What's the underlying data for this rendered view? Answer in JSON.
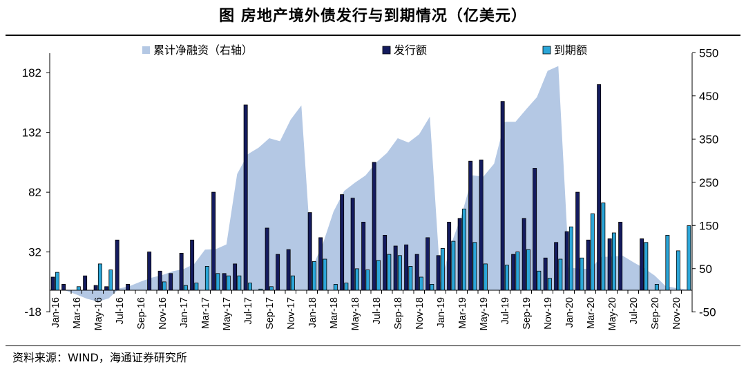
{
  "title": "图  房地产境外债发行与到期情况（亿美元）",
  "source": "资料来源：WIND，海通证券研究所",
  "colors": {
    "area": "#B4C8E4",
    "issue": "#141B5E",
    "maturity": "#2BA6D8",
    "bar_outline": "#000000"
  },
  "chart_data": {
    "type": "bar+area",
    "legend_position": "top",
    "grid": false,
    "left_axis": {
      "ylim": [
        -18,
        200
      ],
      "ticks": [
        -18,
        32,
        82,
        132,
        182
      ]
    },
    "right_axis": {
      "ylim": [
        -50,
        555
      ],
      "ticks": [
        -50,
        50,
        150,
        250,
        350,
        450,
        550
      ]
    },
    "x_tick_labels": [
      "Jan-16",
      "Mar-16",
      "May-16",
      "Jul-16",
      "Sep-16",
      "Nov-16",
      "Jan-17",
      "Mar-17",
      "May-17",
      "Jul-17",
      "Sep-17",
      "Nov-17",
      "Jan-18",
      "Mar-18",
      "May-18",
      "Jul-18",
      "Sep-18",
      "Nov-18",
      "Jan-19",
      "Mar-19",
      "May-19",
      "Jul-19",
      "Sep-19",
      "Nov-19",
      "Jan-20",
      "Mar-20",
      "May-20",
      "Jul-20",
      "Sep-20",
      "Nov-20"
    ],
    "months": [
      "Jan-16",
      "Feb-16",
      "Mar-16",
      "Apr-16",
      "May-16",
      "Jun-16",
      "Jul-16",
      "Aug-16",
      "Sep-16",
      "Oct-16",
      "Nov-16",
      "Dec-16",
      "Jan-17",
      "Feb-17",
      "Mar-17",
      "Apr-17",
      "May-17",
      "Jun-17",
      "Jul-17",
      "Aug-17",
      "Sep-17",
      "Oct-17",
      "Nov-17",
      "Dec-17",
      "Jan-18",
      "Feb-18",
      "Mar-18",
      "Apr-18",
      "May-18",
      "Jun-18",
      "Jul-18",
      "Aug-18",
      "Sep-18",
      "Oct-18",
      "Nov-18",
      "Dec-18",
      "Jan-19",
      "Feb-19",
      "Mar-19",
      "Apr-19",
      "May-19",
      "Jun-19",
      "Jul-19",
      "Aug-19",
      "Sep-19",
      "Oct-19",
      "Nov-19",
      "Dec-19",
      "Jan-20",
      "Feb-20",
      "Mar-20",
      "Apr-20",
      "May-20",
      "Jun-20",
      "Jul-20",
      "Aug-20",
      "Sep-20",
      "Oct-20",
      "Nov-20",
      "Dec-20"
    ],
    "series": [
      {
        "name": "累计净融资（右轴）",
        "type": "area",
        "axis": "right",
        "values": [
          2,
          -1,
          -10,
          -20,
          -26,
          -19,
          4,
          10,
          20,
          29,
          35,
          44,
          49,
          61,
          94,
          95,
          106,
          269,
          315,
          330,
          352,
          345,
          395,
          428,
          52,
          107,
          182,
          230,
          249,
          266,
          296,
          318,
          352,
          342,
          361,
          402,
          18,
          107,
          177,
          266,
          263,
          293,
          390,
          390,
          419,
          447,
          508,
          519,
          52,
          50,
          49,
          77,
          78,
          80,
          65,
          51,
          34,
          10,
          5,
          2
        ]
      },
      {
        "name": "发行额",
        "type": "bar",
        "axis": "left",
        "values": [
          11,
          5,
          0,
          12,
          4,
          3,
          42,
          5,
          0,
          32,
          16,
          14,
          31,
          42,
          0,
          82,
          14,
          22,
          155,
          0,
          52,
          30,
          34,
          0,
          65,
          44,
          0,
          80,
          77,
          57,
          107,
          46,
          37,
          38,
          30,
          44,
          29,
          57,
          60,
          108,
          109,
          0,
          158,
          30,
          60,
          102,
          27,
          40,
          49,
          82,
          42,
          172,
          43,
          57,
          0,
          43,
          0,
          0,
          0,
          0
        ]
      },
      {
        "name": "到期额",
        "type": "bar",
        "axis": "left",
        "values": [
          15,
          0,
          3,
          0,
          22,
          17,
          0,
          0,
          0,
          0,
          7,
          0,
          4,
          6,
          20,
          14,
          12,
          12,
          6,
          1,
          3,
          0,
          12,
          0,
          24,
          26,
          5,
          6,
          18,
          17,
          25,
          30,
          29,
          20,
          11,
          5,
          35,
          41,
          68,
          40,
          22,
          0,
          21,
          32,
          34,
          16,
          10,
          26,
          53,
          27,
          64,
          73,
          48,
          0,
          0,
          40,
          5,
          46,
          33,
          54
        ]
      }
    ]
  }
}
